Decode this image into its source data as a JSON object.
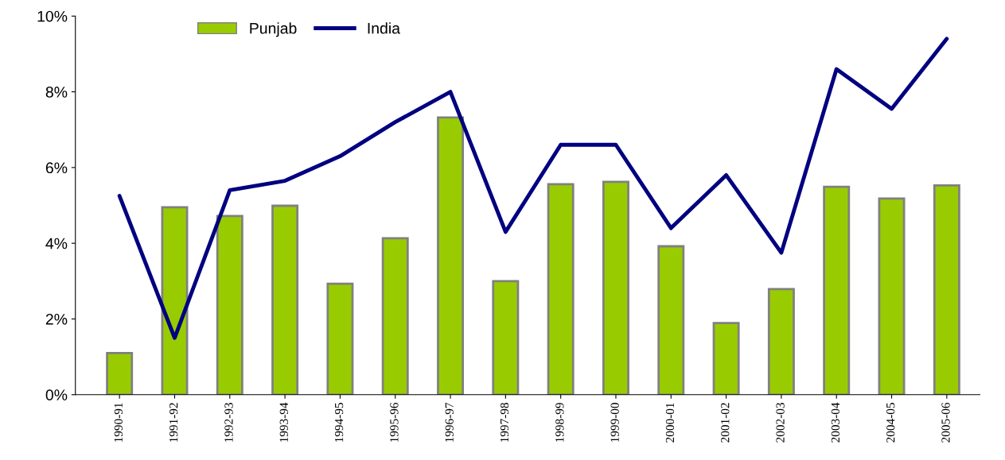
{
  "chart_data": {
    "type": "bar",
    "categories": [
      "1990-91",
      "1991-92",
      "1992-93",
      "1993-94",
      "1994-95",
      "1995-96",
      "1996-97",
      "1997-98",
      "1998-99",
      "1999-00",
      "2000-01",
      "2001-02",
      "2002-03",
      "2003-04",
      "2004-05",
      "2005-06"
    ],
    "series": [
      {
        "name": "Punjab",
        "color": "#99cc00",
        "values": [
          1.1,
          4.95,
          4.72,
          4.99,
          2.93,
          4.13,
          7.32,
          3.0,
          5.56,
          5.62,
          3.92,
          1.89,
          2.79,
          5.49,
          5.18,
          5.53
        ]
      },
      {
        "name": "India",
        "type": "line",
        "color": "#000080",
        "values": [
          5.25,
          1.5,
          5.4,
          5.65,
          6.3,
          7.2,
          8.0,
          4.3,
          6.6,
          6.6,
          4.4,
          5.8,
          3.75,
          8.6,
          7.55,
          9.4
        ]
      }
    ],
    "ylim": [
      0,
      10
    ],
    "yticks": [
      {
        "value": 0,
        "label": "0%"
      },
      {
        "value": 2,
        "label": "2%"
      },
      {
        "value": 4,
        "label": "4%"
      },
      {
        "value": 6,
        "label": "6%"
      },
      {
        "value": 8,
        "label": "8%"
      },
      {
        "value": 10,
        "label": "10%"
      }
    ],
    "grid": false,
    "legend": "top left",
    "marker": "none",
    "line_style": "solid"
  }
}
